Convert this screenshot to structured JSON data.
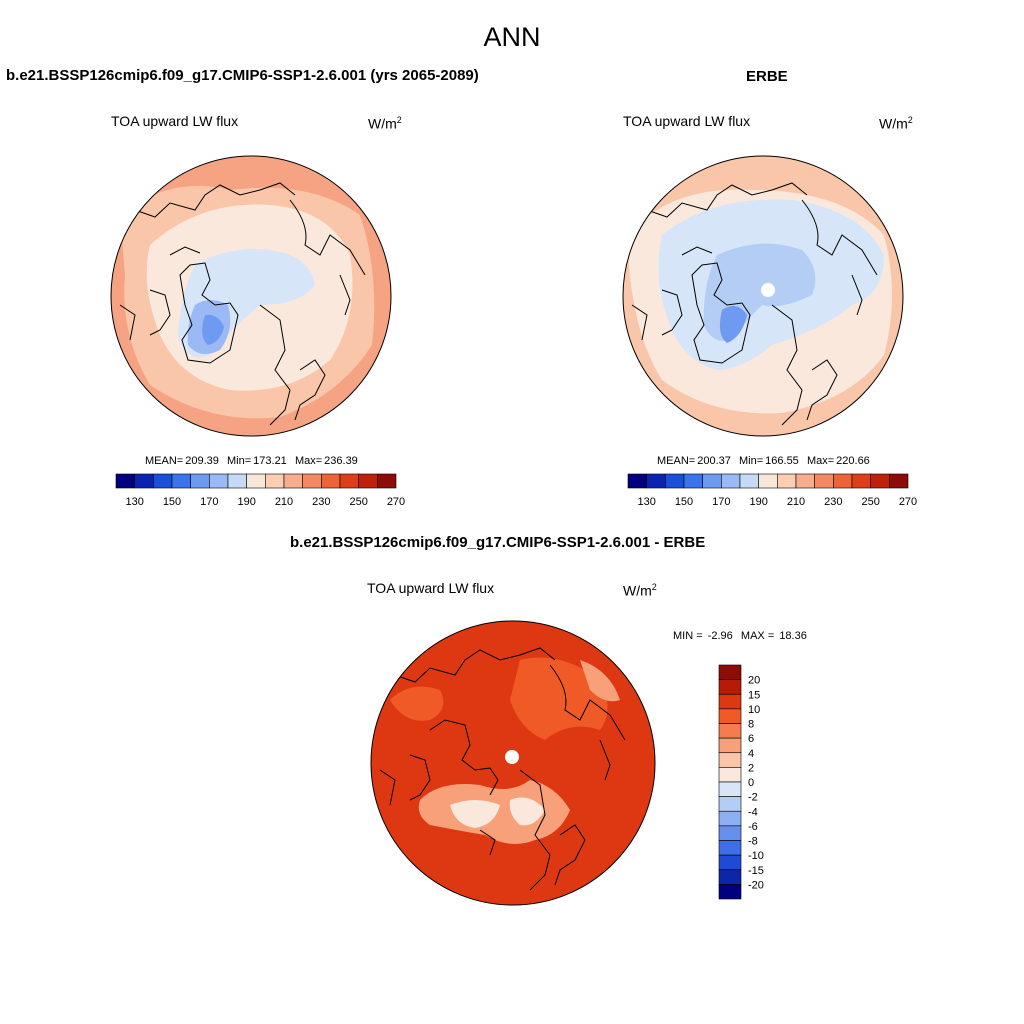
{
  "main_title": "ANN",
  "panels": [
    {
      "id": "model",
      "title": "b.e21.BSSP126cmip6.f09_g17.CMIP6-SSP1-2.6.001 (yrs 2065-2089)",
      "variable": "TOA upward LW flux",
      "units": "W/m",
      "units_sup": "2",
      "stats": {
        "mean_label": "MEAN=",
        "mean": "209.39",
        "min_label": "Min=",
        "min": "173.21",
        "max_label": "Max=",
        "max": "236.39"
      }
    },
    {
      "id": "obs",
      "title": "ERBE",
      "variable": "TOA upward LW flux",
      "units": "W/m",
      "units_sup": "2",
      "stats": {
        "mean_label": "MEAN=",
        "mean": "200.37",
        "min_label": "Min=",
        "min": "166.55",
        "max_label": "Max=",
        "max": "220.66"
      }
    },
    {
      "id": "diff",
      "title": "b.e21.BSSP126cmip6.f09_g17.CMIP6-SSP1-2.6.001 - ERBE",
      "variable": "TOA upward LW flux",
      "units": "W/m",
      "units_sup": "2",
      "stats": {
        "min_label": "MIN =",
        "min": "-2.96",
        "max_label": "MAX =",
        "max": "18.36"
      }
    }
  ],
  "abs_colorbar": {
    "colors": [
      "#000080",
      "#0a23b5",
      "#1a4fdc",
      "#3b72f0",
      "#6f9af2",
      "#9bbaf5",
      "#c6d9f7",
      "#f8e6d8",
      "#fbcdb2",
      "#f8ad8c",
      "#f58a62",
      "#ee6437",
      "#e03e1a",
      "#c2200c",
      "#8e0b06"
    ],
    "labels": [
      "130",
      "150",
      "170",
      "190",
      "210",
      "230",
      "250",
      "270"
    ]
  },
  "diff_colorbar": {
    "colors": [
      "#8e0b06",
      "#b81a08",
      "#dd3812",
      "#ef5a27",
      "#f47d4d",
      "#f7a07a",
      "#f9c6a9",
      "#fae8dc",
      "#d6e6f8",
      "#b3cdf5",
      "#8db0f2",
      "#6790ee",
      "#3f6ee7",
      "#1e4ad6",
      "#0b27a8",
      "#000080"
    ],
    "labels": [
      "20",
      "15",
      "10",
      "8",
      "6",
      "4",
      "2",
      "0",
      "-2",
      "-4",
      "-6",
      "-8",
      "-10",
      "-15",
      "-20"
    ]
  },
  "map_colors": {
    "model_outer": "#f5a383",
    "model_mid": "#f9c6a9",
    "model_light": "#fae8dc",
    "model_blue1": "#d6e6f8",
    "model_blue2": "#9bbaf5",
    "model_blue3": "#6f9af2",
    "obs_outer": "#f9c6a9",
    "obs_mid": "#fae8dc",
    "obs_blue1": "#d6e6f8",
    "obs_blue2": "#b3cdf5",
    "obs_blue3": "#6f9af2",
    "diff_outer": "#dd3812",
    "diff_mid": "#ef5a27",
    "diff_light": "#f7a07a",
    "diff_pale": "#fae8dc"
  }
}
